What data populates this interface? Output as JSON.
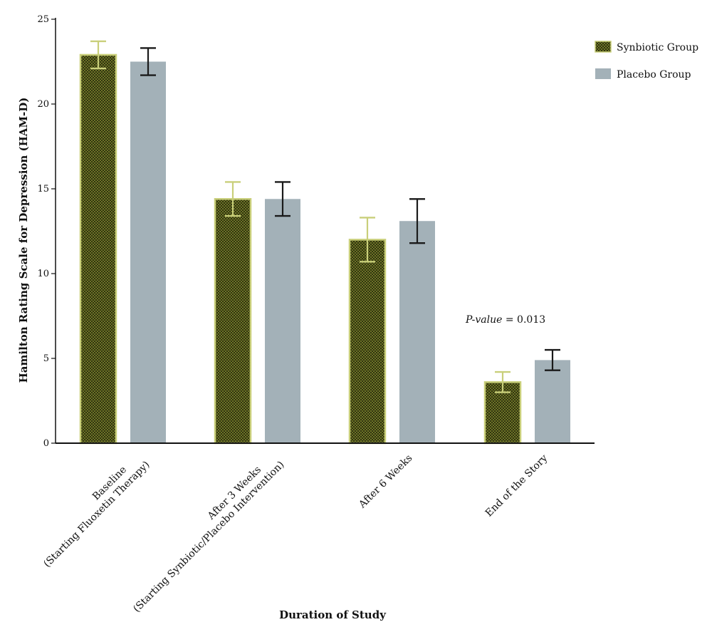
{
  "chart_data": {
    "type": "bar",
    "title": "",
    "xlabel": "Duration of Study",
    "ylabel": "Hamilton Rating Scale for Depression (HAM-D)",
    "ylim": [
      0,
      25
    ],
    "yticks": [
      "0",
      "5",
      "10",
      "15",
      "20",
      "25"
    ],
    "categories": [
      {
        "line1": "Baseline",
        "line2": "(Starting Fluoxetin Therapy)"
      },
      {
        "line1": "After 3 Weeks",
        "line2": "(Starting Synbiotic/Placebo Intervention)"
      },
      {
        "line1": "After 6 Weeks",
        "line2": ""
      },
      {
        "line1": "End of the Story",
        "line2": ""
      }
    ],
    "series": [
      {
        "name": "Synbiotic Group",
        "values": [
          22.9,
          14.4,
          12.0,
          3.6
        ],
        "errors": [
          0.8,
          1.0,
          1.3,
          0.6
        ],
        "color": "#3b3f12",
        "edge": "#c9cf7a",
        "pattern": "checker"
      },
      {
        "name": "Placebo Group",
        "values": [
          22.5,
          14.4,
          13.1,
          4.9
        ],
        "errors": [
          0.8,
          1.0,
          1.3,
          0.6
        ],
        "color": "#a3b1b8",
        "edge": "#a3b1b8",
        "pattern": "solid"
      }
    ],
    "annotation": {
      "italic": "P-value",
      "text": " = 0.013"
    },
    "legend_position": "top-right",
    "grid": false
  }
}
